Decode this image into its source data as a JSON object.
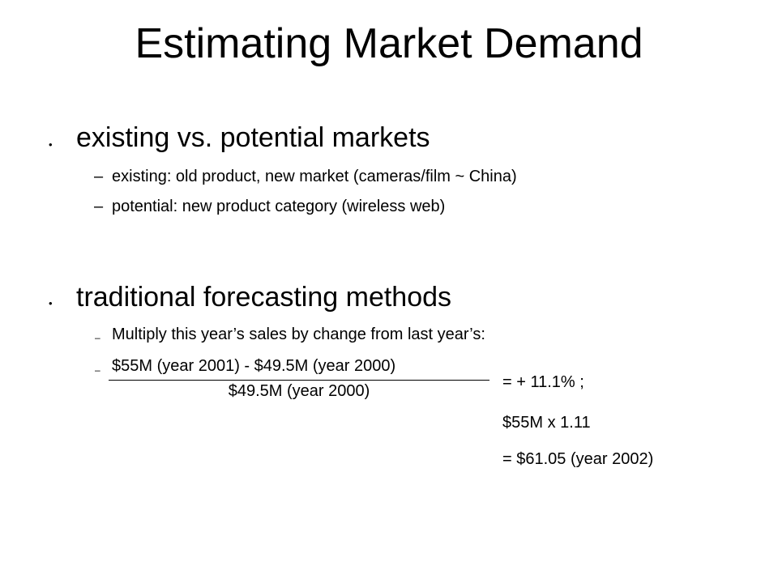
{
  "slide": {
    "title": "Estimating Market Demand",
    "bullet_glyph": "•",
    "sections": [
      {
        "heading": "existing vs. potential markets",
        "subitems": [
          {
            "dash": "–",
            "text": "existing: old product, new market (cameras/film ~ China)"
          },
          {
            "dash": "–",
            "text": "potential:  new product category (wireless web)"
          }
        ]
      },
      {
        "heading": "traditional forecasting methods",
        "subitems": [
          {
            "dash": "–",
            "text": "Multiply this year’s sales by change from last year’s:"
          },
          {
            "dash": "–"
          }
        ]
      }
    ],
    "fraction": {
      "numerator": "$55M (year 2001) - $49.5M (year 2000)",
      "denominator": "$49.5M (year 2000)"
    },
    "calculations": [
      "= + 11.1% ;",
      "$55M x 1.11",
      "= $61.05 (year 2002)"
    ]
  }
}
